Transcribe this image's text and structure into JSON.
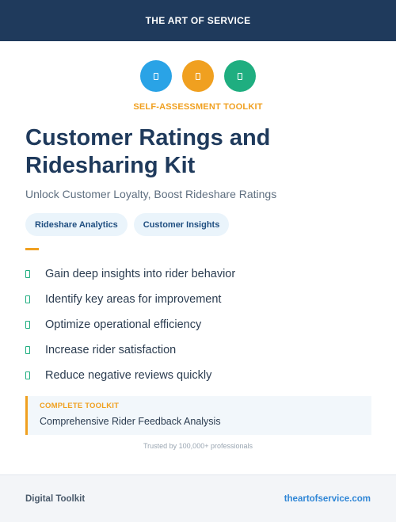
{
  "header": {
    "title": "THE ART OF SERVICE"
  },
  "icons": [
    {
      "name": "document-icon",
      "color": "#2aa3e6"
    },
    {
      "name": "document-icon",
      "color": "#f0a020"
    },
    {
      "name": "document-icon",
      "color": "#1fae80"
    }
  ],
  "eyebrow": "SELF-ASSESSMENT TOOLKIT",
  "title": "Customer Ratings and Ridesharing Kit",
  "subtitle": "Unlock Customer Loyalty, Boost Rideshare Ratings",
  "tags": [
    "Rideshare Analytics",
    "Customer Insights"
  ],
  "features": [
    "Gain deep insights into rider behavior",
    "Identify key areas for improvement",
    "Optimize operational efficiency",
    "Increase rider satisfaction",
    "Reduce negative reviews quickly"
  ],
  "callout": {
    "label": "COMPLETE TOOLKIT",
    "text": "Comprehensive Rider Feedback Analysis"
  },
  "trusted": "Trusted by 100,000+ professionals",
  "footer": {
    "left": "Digital Toolkit",
    "right": "theartofservice.com"
  }
}
